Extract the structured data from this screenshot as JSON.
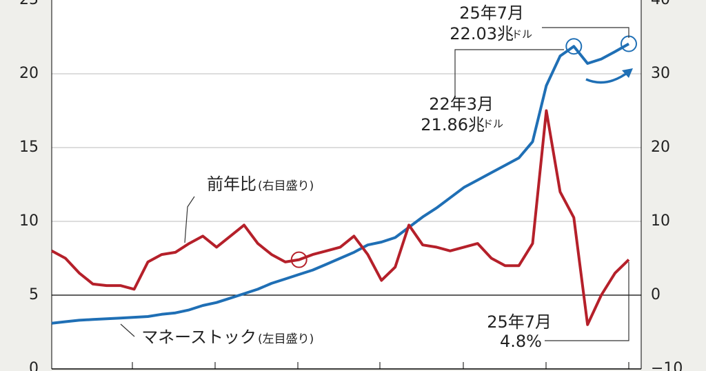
{
  "chart_data": {
    "type": "line",
    "ylim": [
      0,
      25
    ],
    "yticks": [
      0,
      5,
      10,
      15,
      20,
      25
    ],
    "y2lim": [
      -10,
      40
    ],
    "y2ticks": [
      {
        "value": -10,
        "label": "−10"
      },
      0,
      10,
      20,
      30,
      40
    ],
    "grid": true,
    "series": [
      {
        "name": "マネーストック",
        "axis_note": "(左目盛り)",
        "color": "#1f6fb5",
        "axis": "y",
        "values": [
          3.1,
          3.2,
          3.3,
          3.35,
          3.4,
          3.45,
          3.5,
          3.55,
          3.7,
          3.8,
          4.0,
          4.3,
          4.5,
          4.8,
          5.1,
          5.4,
          5.8,
          6.1,
          6.4,
          6.7,
          7.1,
          7.5,
          7.9,
          8.4,
          8.6,
          8.9,
          9.6,
          10.3,
          10.9,
          11.6,
          12.3,
          12.8,
          13.3,
          13.8,
          14.3,
          15.4,
          19.2,
          21.2,
          21.86,
          20.7,
          21.0,
          21.5,
          22.03
        ],
        "annotations": [
          {
            "date": "22年3月",
            "value": 21.86,
            "label": "21.86兆",
            "unit": "ドル"
          },
          {
            "date": "25年7月",
            "value": 22.03,
            "label": "22.03兆",
            "unit": "ドル"
          }
        ]
      },
      {
        "name": "前年比",
        "axis_note": "(右目盛り)",
        "color": "#b5202a",
        "axis": "y2",
        "values": [
          6,
          5,
          3,
          1.5,
          1.3,
          1.3,
          0.8,
          4.5,
          5.5,
          5.8,
          7,
          8,
          6.5,
          8,
          9.5,
          7,
          5.5,
          4.5,
          4.8,
          5.5,
          6,
          6.5,
          8,
          5.5,
          2,
          3.8,
          9.5,
          6.8,
          6.5,
          6,
          6.5,
          7,
          5,
          4,
          4,
          7,
          25,
          14,
          10.5,
          -4,
          0,
          3,
          4.8
        ],
        "annotations": [
          {
            "date": "25年7月",
            "value": 4.8,
            "label": "4.8%"
          }
        ]
      }
    ]
  }
}
